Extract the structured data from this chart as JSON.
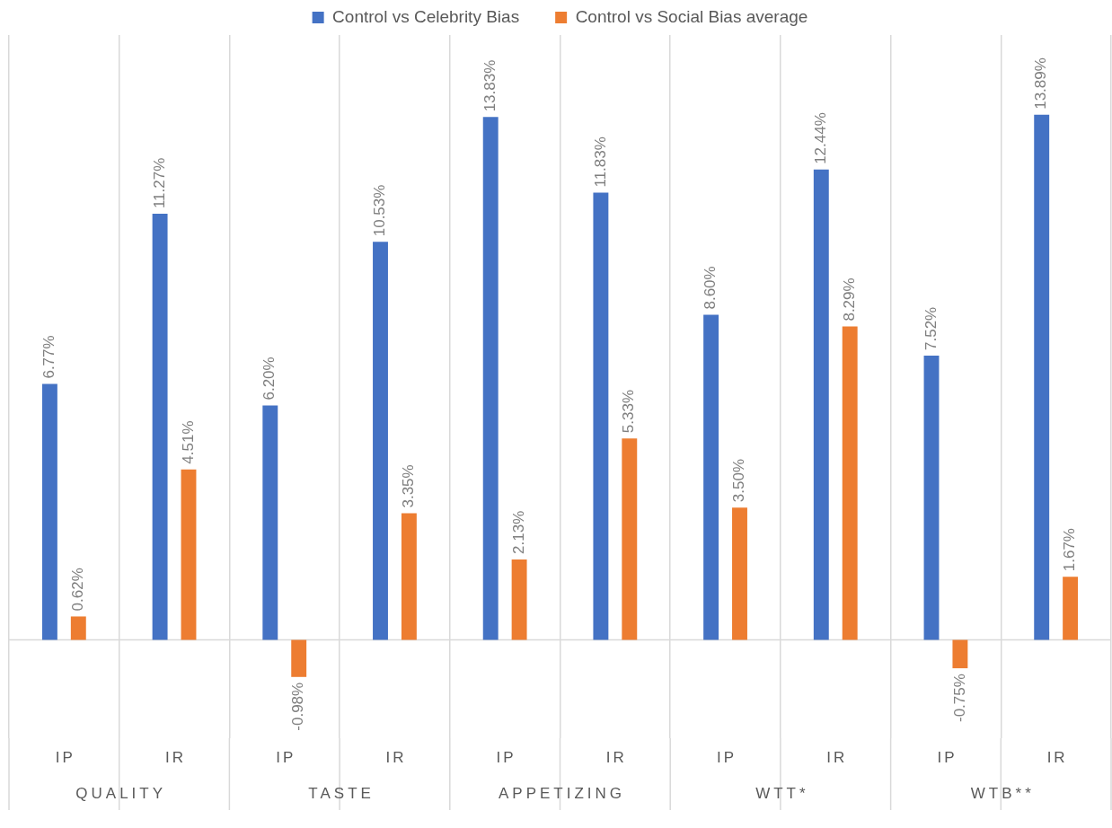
{
  "chart_data": {
    "type": "bar",
    "categories": [
      "IP",
      "IR",
      "IP",
      "IR",
      "IP",
      "IR",
      "IP",
      "IR",
      "IP",
      "IR"
    ],
    "series": [
      {
        "name": "Control vs Celebrity Bias",
        "color": "#4472c4",
        "values": [
          6.77,
          11.27,
          6.2,
          10.53,
          13.83,
          11.83,
          8.6,
          12.44,
          7.52,
          13.89
        ],
        "value_labels": [
          "6.77%",
          "11.27%",
          "6.20%",
          "10.53%",
          "13.83%",
          "11.83%",
          "8.60%",
          "12.44%",
          "7.52%",
          "13.89%"
        ]
      },
      {
        "name": "Control vs Social Bias average",
        "color": "#ed7d31",
        "values": [
          0.62,
          4.51,
          -0.98,
          3.35,
          2.13,
          5.33,
          3.5,
          8.29,
          -0.75,
          1.67
        ],
        "value_labels": [
          "0.62%",
          "4.51%",
          "-0.98%",
          "3.35%",
          "2.13%",
          "5.33%",
          "3.50%",
          "8.29%",
          "-0.75%",
          "1.67%"
        ]
      }
    ],
    "annotations": [
      "QUALITY",
      "TASTE",
      "APPETIZING",
      "WTT*",
      "WTB**"
    ],
    "ylim": [
      -2.6,
      16
    ],
    "tick_labels": "x",
    "grid": "x",
    "legend": "top"
  }
}
